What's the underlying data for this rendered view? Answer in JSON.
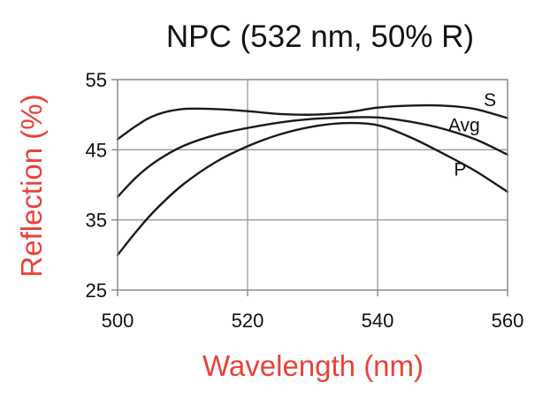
{
  "chart_data": {
    "type": "line",
    "title": "NPC (532 nm, 50% R)",
    "xlabel": "Wavelength (nm)",
    "ylabel": "Reflection (%)",
    "xlim": [
      500,
      560
    ],
    "ylim": [
      25,
      55
    ],
    "xticks": [
      500,
      520,
      540,
      560
    ],
    "yticks": [
      25,
      35,
      45,
      55
    ],
    "grid": true,
    "colors": {
      "axis_title": "#e8423a",
      "line": "#1a1a1a",
      "grid": "#9a9a9a",
      "frame": "#8a8a8a"
    },
    "series": [
      {
        "name": "S",
        "x": [
          500,
          503,
          506,
          510,
          515,
          520,
          525,
          530,
          535,
          540,
          545,
          550,
          555,
          560
        ],
        "y": [
          46.5,
          48.5,
          50.0,
          50.8,
          50.8,
          50.5,
          50.1,
          50.0,
          50.3,
          51.0,
          51.3,
          51.3,
          50.8,
          49.5
        ]
      },
      {
        "name": "Avg",
        "x": [
          500,
          503,
          506,
          510,
          515,
          520,
          525,
          530,
          535,
          540,
          545,
          550,
          555,
          560
        ],
        "y": [
          38.3,
          41.2,
          43.4,
          45.5,
          47.1,
          48.1,
          48.9,
          49.4,
          49.6,
          49.6,
          49.0,
          48.0,
          46.5,
          44.3
        ]
      },
      {
        "name": "P",
        "x": [
          500,
          503,
          506,
          510,
          515,
          520,
          525,
          530,
          535,
          540,
          545,
          550,
          555,
          560
        ],
        "y": [
          30.0,
          33.5,
          36.6,
          40.0,
          43.2,
          45.5,
          47.2,
          48.3,
          48.8,
          48.5,
          46.8,
          44.5,
          42.0,
          39.0
        ]
      }
    ]
  }
}
